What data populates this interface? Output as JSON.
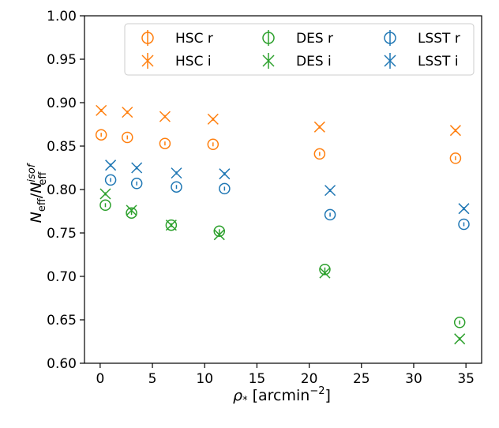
{
  "chart_data": {
    "type": "scatter",
    "xlabel_main": "ρ",
    "xlabel_sub": "*",
    "xlabel_unit": "[arcmin",
    "xlabel_exp": "−2",
    "xlabel_close": "]",
    "ylabel": {
      "n1": "N",
      "sub1": "eff",
      "slash": "/",
      "n2": "N",
      "sup2": "isof",
      "sub2": "eff"
    },
    "xlim": [
      -1.5,
      36.5
    ],
    "ylim": [
      0.6,
      1.0
    ],
    "xticks": [
      "0",
      "5",
      "10",
      "15",
      "20",
      "25",
      "30",
      "35"
    ],
    "yticks": [
      "0.60",
      "0.65",
      "0.70",
      "0.75",
      "0.80",
      "0.85",
      "0.90",
      "0.95",
      "1.00"
    ],
    "legend_position": "top-right",
    "colors": {
      "HSC": "#ff7f0e",
      "DES": "#2ca02c",
      "LSST": "#1f77b4"
    },
    "series": [
      {
        "name": "HSC r",
        "color": "#ff7f0e",
        "marker": "circle",
        "x": [
          0.1,
          2.6,
          6.2,
          10.8,
          21.0,
          34.0
        ],
        "y": [
          0.863,
          0.86,
          0.853,
          0.852,
          0.841,
          0.836
        ]
      },
      {
        "name": "HSC i",
        "color": "#ff7f0e",
        "marker": "x",
        "x": [
          0.1,
          2.6,
          6.2,
          10.8,
          21.0,
          34.0
        ],
        "y": [
          0.891,
          0.889,
          0.884,
          0.881,
          0.872,
          0.868
        ]
      },
      {
        "name": "DES r",
        "color": "#2ca02c",
        "marker": "circle",
        "x": [
          0.5,
          3.0,
          6.8,
          11.4,
          21.5,
          34.4
        ],
        "y": [
          0.782,
          0.773,
          0.759,
          0.752,
          0.708,
          0.647
        ]
      },
      {
        "name": "DES i",
        "color": "#2ca02c",
        "marker": "x",
        "x": [
          0.5,
          3.0,
          6.8,
          11.4,
          21.5,
          34.4
        ],
        "y": [
          0.795,
          0.776,
          0.759,
          0.748,
          0.704,
          0.628
        ]
      },
      {
        "name": "LSST r",
        "color": "#1f77b4",
        "marker": "circle",
        "x": [
          1.0,
          3.5,
          7.3,
          11.9,
          22.0,
          34.8
        ],
        "y": [
          0.811,
          0.807,
          0.803,
          0.801,
          0.771,
          0.76
        ]
      },
      {
        "name": "LSST i",
        "color": "#1f77b4",
        "marker": "x",
        "x": [
          1.0,
          3.5,
          7.3,
          11.9,
          22.0,
          34.8
        ],
        "y": [
          0.828,
          0.825,
          0.819,
          0.818,
          0.799,
          0.778
        ]
      }
    ]
  }
}
